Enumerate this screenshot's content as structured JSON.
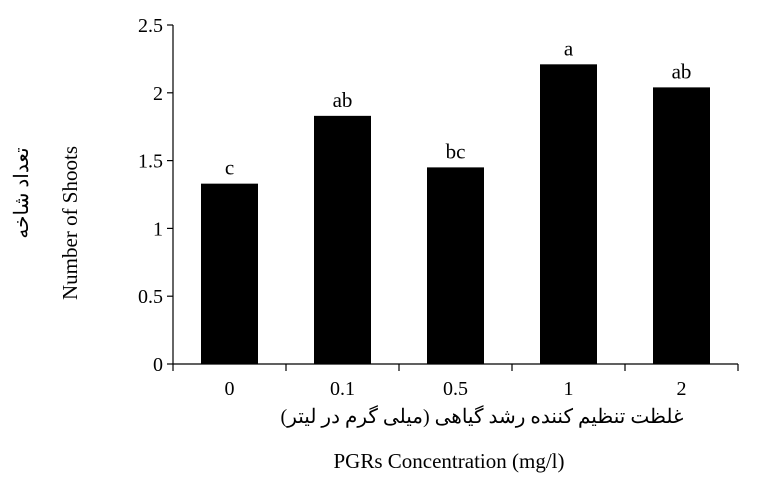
{
  "chart_data": {
    "type": "bar",
    "categories": [
      "0",
      "0.1",
      "0.5",
      "1",
      "2"
    ],
    "values": [
      1.33,
      1.83,
      1.45,
      2.21,
      2.04
    ],
    "significance_letters": [
      "c",
      "ab",
      "bc",
      "a",
      "ab"
    ],
    "ylim": [
      0,
      2.5
    ],
    "yticks": [
      "0",
      "0.5",
      "1",
      "1.5",
      "2",
      "2.5"
    ],
    "ylabel": "Number of Shoots",
    "ylabel_fa": "تعداد شاخه",
    "xlabel": "PGRs Concentration (mg/l)",
    "xlabel_fa": "غلظت تنظیم کننده رشد گیاهی (میلی گرم در لیتر)",
    "bar_color": "#000000",
    "grid": false,
    "legend": "none"
  }
}
